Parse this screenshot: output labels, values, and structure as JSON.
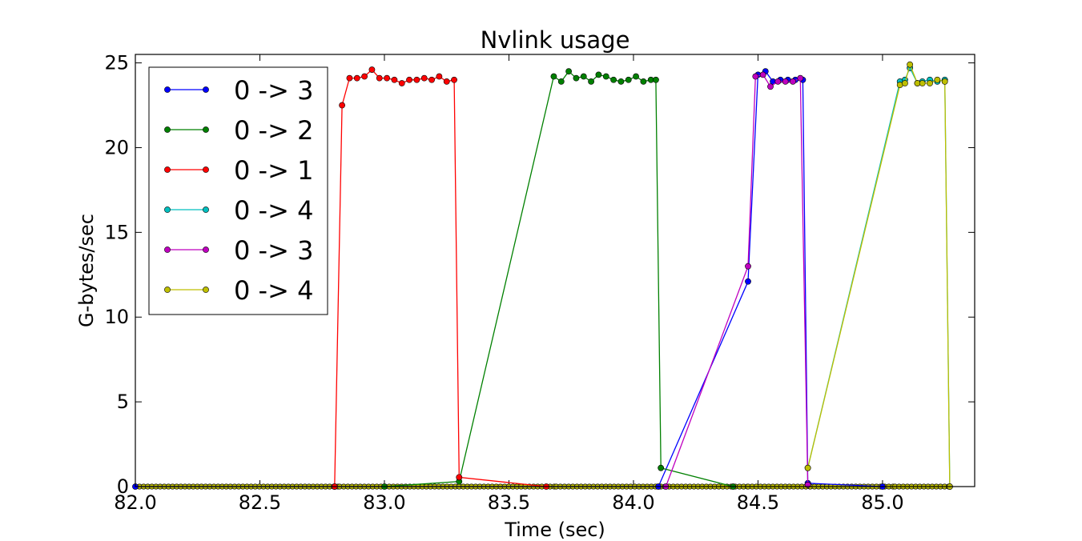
{
  "chart_data": {
    "type": "line",
    "title": "Nvlink usage",
    "xlabel": "Time (sec)",
    "ylabel": "G-bytes/sec",
    "xlim": [
      82.0,
      85.37
    ],
    "ylim": [
      0,
      25.5
    ],
    "xticks": [
      "82.0",
      "82.5",
      "83.0",
      "83.5",
      "84.0",
      "84.5",
      "85.0"
    ],
    "yticks": [
      "0",
      "5",
      "10",
      "15",
      "20",
      "25"
    ],
    "grid": false,
    "legend_position": "upper-left",
    "series": [
      {
        "name": "0 -> 3",
        "color": "#0000ff",
        "x": [
          82.0,
          82.8,
          84.1,
          84.46,
          84.5,
          84.53,
          84.56,
          84.59,
          84.62,
          84.65,
          84.68,
          84.7,
          85.0
        ],
        "y": [
          0,
          0,
          0,
          12.1,
          24.3,
          24.5,
          23.9,
          24.0,
          24.0,
          24.0,
          24.0,
          0.2,
          0
        ]
      },
      {
        "name": "0 -> 2",
        "color": "#008000",
        "x": [
          83.0,
          83.3,
          83.68,
          83.71,
          83.74,
          83.77,
          83.8,
          83.83,
          83.86,
          83.89,
          83.92,
          83.95,
          83.98,
          84.01,
          84.04,
          84.07,
          84.09,
          84.11,
          84.4
        ],
        "y": [
          0,
          0.3,
          24.2,
          23.9,
          24.5,
          24.1,
          24.2,
          23.9,
          24.3,
          24.2,
          24.0,
          23.9,
          24.0,
          24.2,
          23.9,
          24.0,
          24.0,
          1.1,
          0
        ]
      },
      {
        "name": "0 -> 1",
        "color": "#ff0000",
        "x": [
          82.8,
          82.83,
          82.86,
          82.89,
          82.92,
          82.95,
          82.98,
          83.01,
          83.04,
          83.07,
          83.1,
          83.13,
          83.16,
          83.19,
          83.22,
          83.25,
          83.28,
          83.3,
          83.65
        ],
        "y": [
          0,
          22.5,
          24.1,
          24.1,
          24.2,
          24.6,
          24.1,
          24.1,
          24.0,
          23.8,
          24.0,
          24.0,
          24.1,
          24.0,
          24.2,
          23.9,
          24.0,
          0.55,
          0
        ]
      },
      {
        "name": "0 -> 4",
        "color": "#00bfbf",
        "x": [
          84.7,
          85.07,
          85.09,
          85.11,
          85.14,
          85.16,
          85.19,
          85.22,
          85.25,
          85.27
        ],
        "y": [
          1.1,
          23.9,
          24.0,
          24.7,
          23.8,
          23.9,
          24.0,
          23.9,
          24.0,
          0
        ]
      },
      {
        "name": "0 -> 3",
        "color": "#bf00bf",
        "x": [
          84.13,
          84.46,
          84.49,
          84.52,
          84.55,
          84.58,
          84.61,
          84.64,
          84.67,
          84.7
        ],
        "y": [
          0,
          13.0,
          24.2,
          24.3,
          23.6,
          23.9,
          23.9,
          23.9,
          24.1,
          0.1
        ]
      },
      {
        "name": "0 -> 4",
        "color": "#bfbf00",
        "x": [
          84.7,
          85.07,
          85.09,
          85.11,
          85.14,
          85.16,
          85.19,
          85.22,
          85.25,
          85.27
        ],
        "y": [
          1.1,
          23.7,
          23.8,
          24.9,
          23.8,
          23.8,
          23.8,
          24.0,
          23.9,
          0
        ]
      }
    ],
    "baseline_series": [
      {
        "color": "#0000ff",
        "x": [
          82.0,
          82.82,
          83.3,
          83.69,
          84.11,
          84.46,
          84.71,
          85.05,
          85.27
        ],
        "y": [
          0,
          0,
          0,
          0,
          0,
          0,
          0,
          0,
          0
        ]
      },
      {
        "color": "#bfbf00",
        "x": [
          82.0,
          82.82,
          83.3,
          83.69,
          84.11,
          84.46,
          84.71,
          85.05,
          85.27
        ],
        "y": [
          0,
          0,
          0,
          0,
          0,
          0,
          0,
          0,
          0
        ]
      }
    ]
  }
}
